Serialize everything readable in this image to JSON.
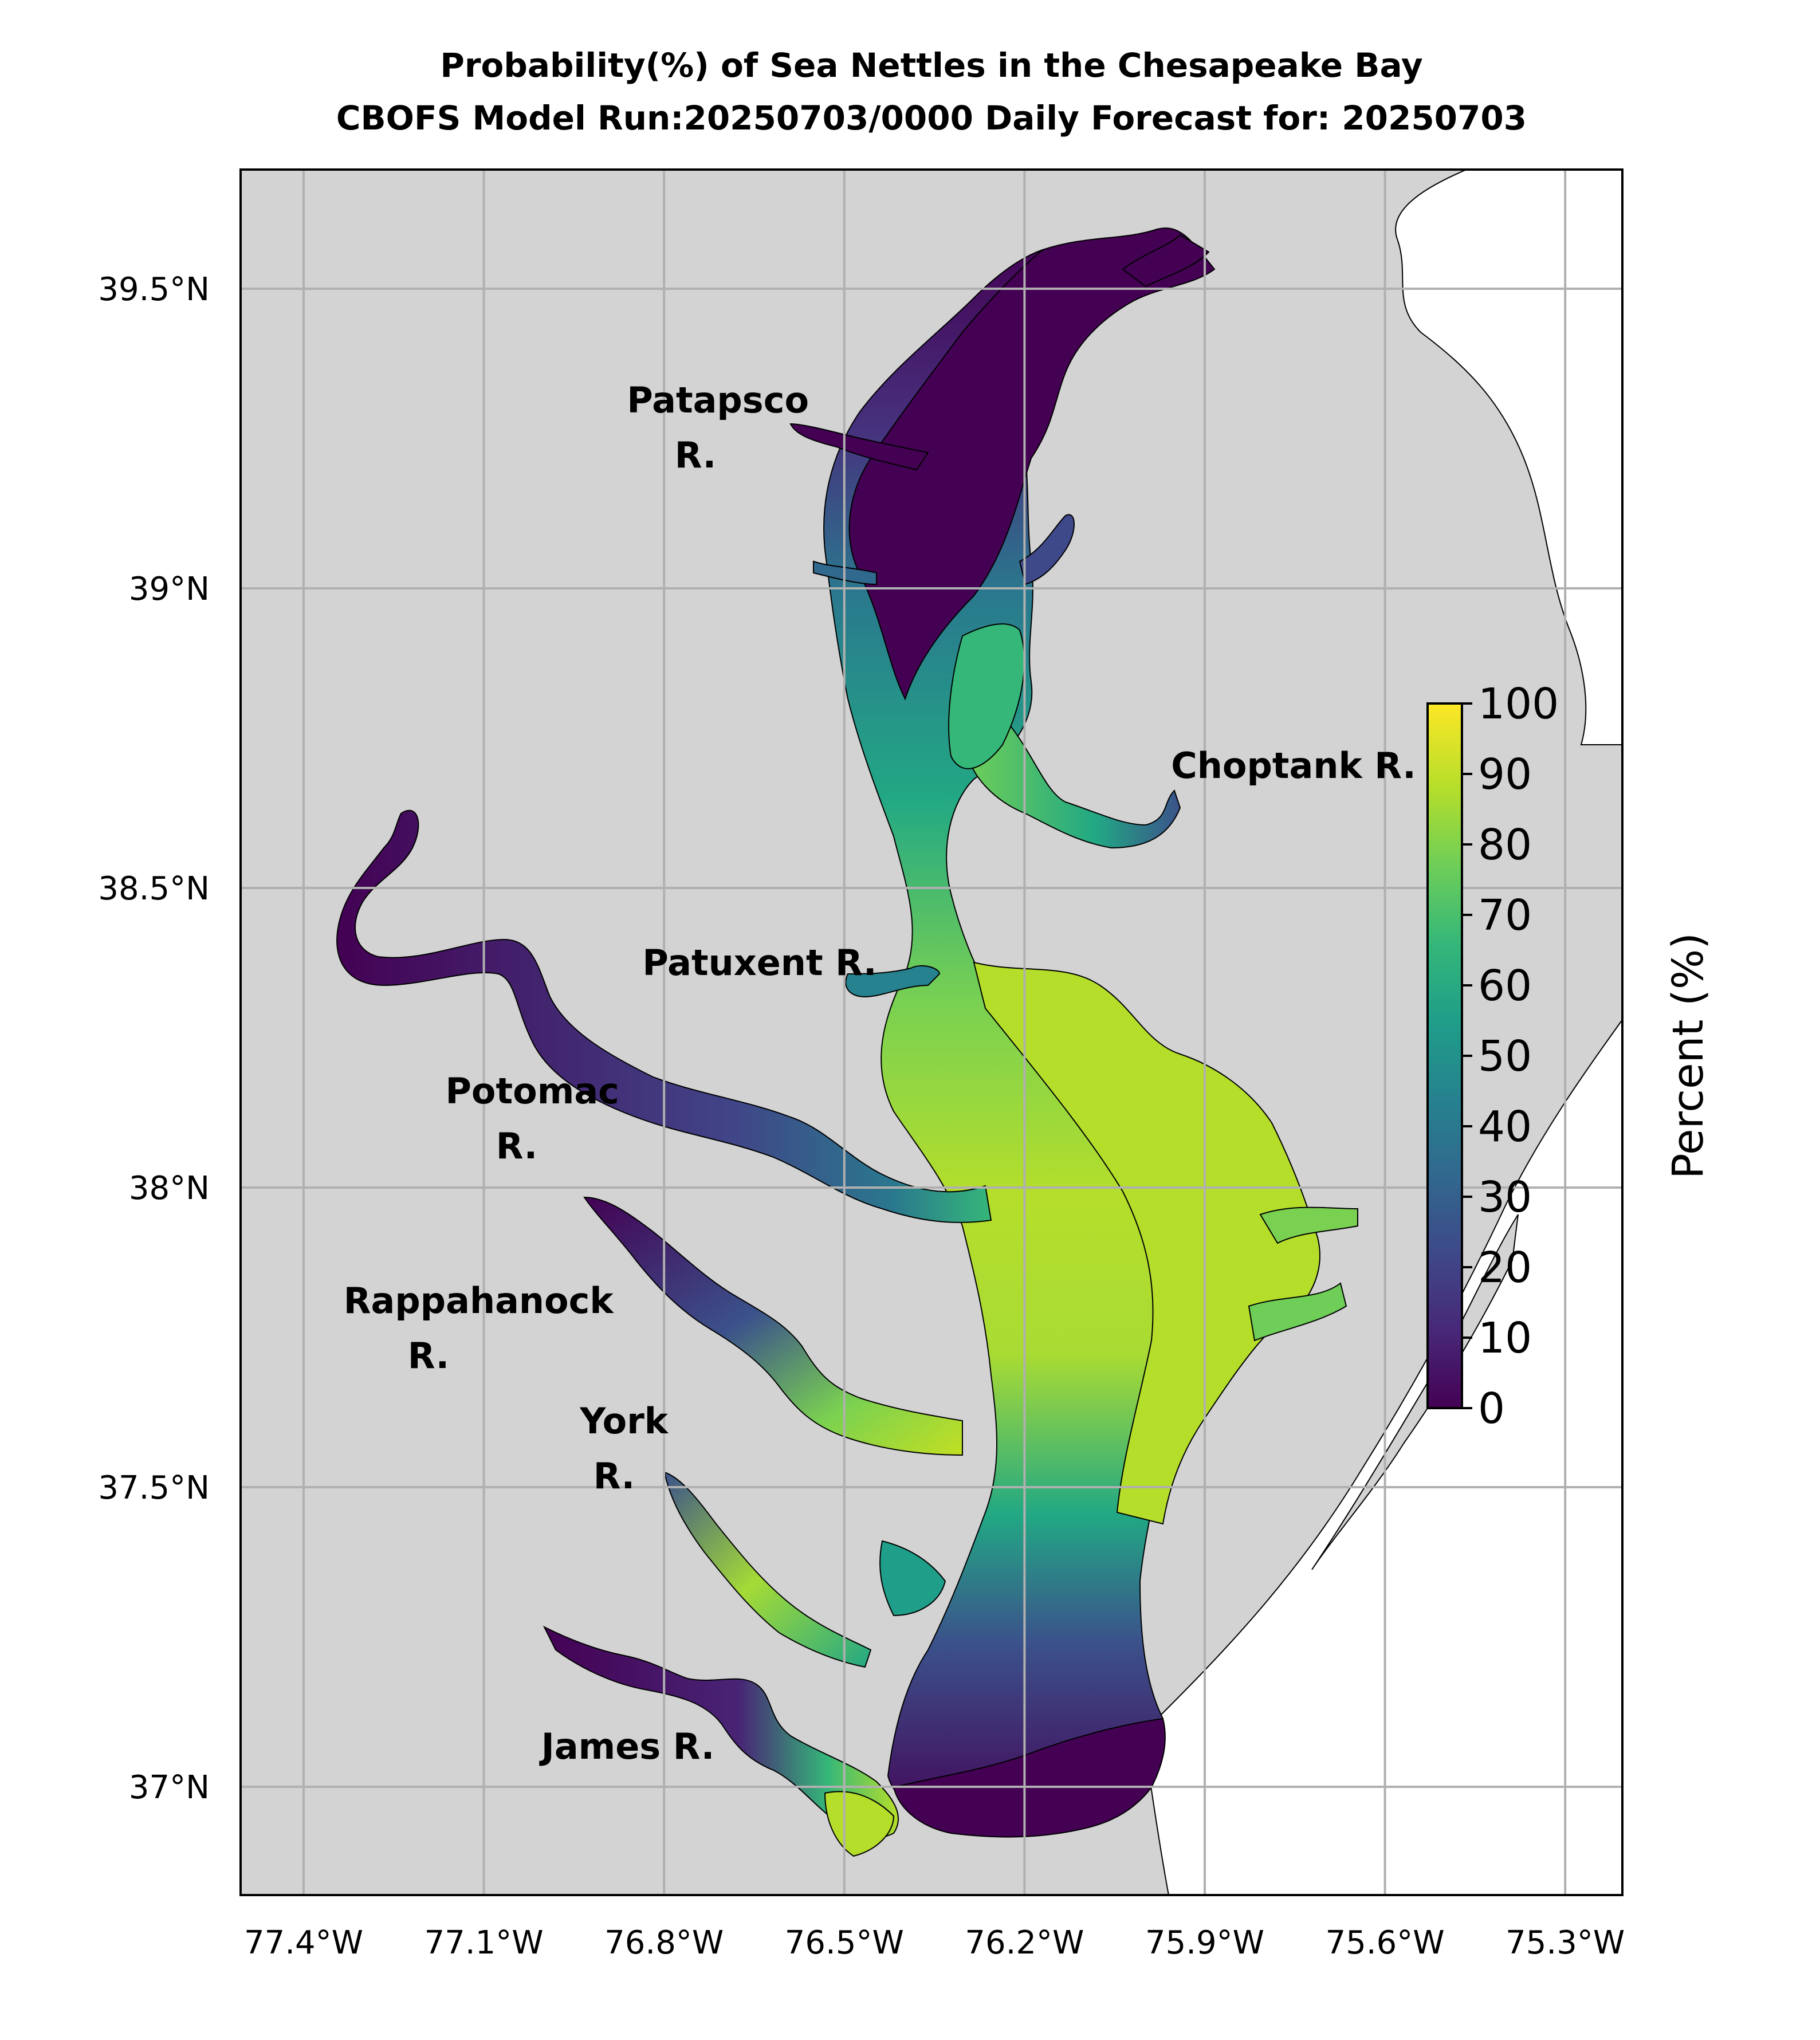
{
  "title": {
    "line1": "Probability(%) of Sea Nettles in the Chesapeake Bay",
    "line2": "CBOFS Model Run:20250703/0000 Daily Forecast for: 20250703"
  },
  "axes": {
    "lon_ticks": [
      {
        "value": -77.4,
        "label": "77.4°W"
      },
      {
        "value": -77.1,
        "label": "77.1°W"
      },
      {
        "value": -76.8,
        "label": "76.8°W"
      },
      {
        "value": -76.5,
        "label": "76.5°W"
      },
      {
        "value": -76.2,
        "label": "76.2°W"
      },
      {
        "value": -75.9,
        "label": "75.9°W"
      },
      {
        "value": -75.6,
        "label": "75.6°W"
      },
      {
        "value": -75.3,
        "label": "75.3°W"
      }
    ],
    "lat_ticks": [
      {
        "value": 39.5,
        "label": "39.5°N"
      },
      {
        "value": 39.0,
        "label": "39°N"
      },
      {
        "value": 38.5,
        "label": "38.5°N"
      },
      {
        "value": 38.0,
        "label": "38°N"
      },
      {
        "value": 37.5,
        "label": "37.5°N"
      },
      {
        "value": 37.0,
        "label": "37°N"
      }
    ],
    "lon_range": [
      -77.5,
      -75.2
    ],
    "lat_range": [
      36.8,
      39.7
    ],
    "grid": true
  },
  "rivers": [
    {
      "name": "patapsco",
      "line1": "Patapsco",
      "line2": "R."
    },
    {
      "name": "choptank",
      "line1": "Choptank R.",
      "line2": ""
    },
    {
      "name": "patuxent",
      "line1": "Patuxent R.",
      "line2": ""
    },
    {
      "name": "potomac",
      "line1": "Potomac",
      "line2": "R."
    },
    {
      "name": "rappahanock",
      "line1": "Rappahanock",
      "line2": "R."
    },
    {
      "name": "york",
      "line1": "York",
      "line2": "R."
    },
    {
      "name": "james",
      "line1": "James R.",
      "line2": ""
    }
  ],
  "colorbar": {
    "label": "Percent (%)",
    "ticks": [
      "0",
      "10",
      "20",
      "30",
      "40",
      "50",
      "60",
      "70",
      "80",
      "90",
      "100"
    ],
    "min": 0,
    "max": 100,
    "colormap": "viridis",
    "stops": [
      "#440154",
      "#482878",
      "#3e4989",
      "#31688e",
      "#26828e",
      "#1f9e89",
      "#35b779",
      "#6ece58",
      "#b5de2b",
      "#fde725"
    ]
  },
  "colors": {
    "land": "#d3d3d3",
    "ocean": "#ffffff",
    "grid": "#b0b0b0"
  }
}
